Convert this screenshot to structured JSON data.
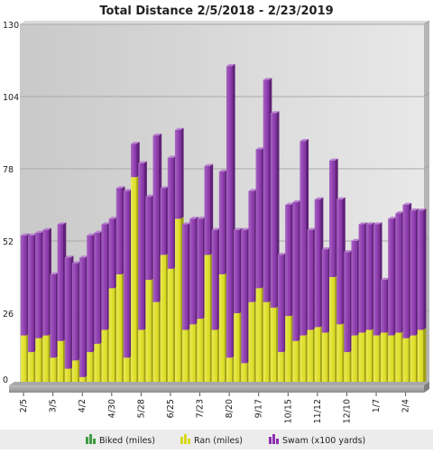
{
  "chart_data": {
    "type": "bar",
    "stacked": true,
    "title": "Total Distance 2/5/2018 - 2/23/2019",
    "xlabel": "",
    "ylabel": "",
    "ylim": [
      0,
      130
    ],
    "yticks": [
      0,
      26,
      52,
      78,
      104,
      130
    ],
    "x_tick_labels": [
      "2/5",
      "3/5",
      "4/2",
      "4/30",
      "5/28",
      "6/25",
      "7/23",
      "8/20",
      "9/17",
      "10/15",
      "11/12",
      "12/10",
      "1/7",
      "2/4"
    ],
    "x_tick_indices": [
      0,
      4,
      8,
      12,
      16,
      20,
      24,
      28,
      32,
      36,
      40,
      44,
      48,
      52
    ],
    "legend_position": "bottom",
    "grid": true,
    "colors": {
      "Biked (miles)": "#3f9c40",
      "Ran (miles)": "#e3e31c",
      "Swam (x100 yards)": "#8a2fae"
    },
    "series": [
      {
        "name": "Biked (miles)",
        "values": [
          0,
          0,
          0,
          0,
          0,
          0,
          0,
          0,
          0,
          0,
          0,
          0,
          0,
          0,
          0,
          0,
          0,
          0,
          0,
          0,
          0,
          0,
          0,
          0,
          0,
          0,
          0,
          0,
          0,
          0,
          0,
          0,
          0,
          0,
          0,
          0,
          0,
          0,
          0,
          0,
          0,
          0,
          0,
          0,
          0,
          0,
          0,
          0,
          0,
          0,
          0,
          0,
          0,
          0,
          0
        ]
      },
      {
        "name": "Ran (miles)",
        "values": [
          18,
          12,
          17,
          18,
          10,
          16,
          6,
          9,
          3,
          12,
          15,
          20,
          35,
          40,
          10,
          75,
          20,
          38,
          30,
          47,
          42,
          60,
          20,
          22,
          24,
          47,
          20,
          40,
          10,
          26,
          8,
          30,
          35,
          30,
          28,
          12,
          25,
          16,
          18,
          20,
          21,
          19,
          39,
          22,
          12,
          18,
          19,
          20,
          18,
          19,
          18,
          19,
          17,
          18,
          20
        ]
      },
      {
        "name": "Swam (x100 yards)",
        "values": [
          36,
          42,
          38,
          38,
          30,
          42,
          40,
          35,
          43,
          42,
          40,
          38,
          25,
          31,
          60,
          12,
          60,
          30,
          60,
          24,
          40,
          32,
          38,
          38,
          36,
          32,
          36,
          37,
          105,
          30,
          48,
          40,
          50,
          80,
          70,
          35,
          40,
          50,
          70,
          36,
          46,
          30,
          42,
          45,
          36,
          34,
          39,
          38,
          40,
          19,
          42,
          43,
          48,
          45,
          43
        ]
      }
    ]
  },
  "legend": {
    "biked": "Biked (miles)",
    "ran": "Ran (miles)",
    "swam": "Swam (x100 yards)"
  }
}
